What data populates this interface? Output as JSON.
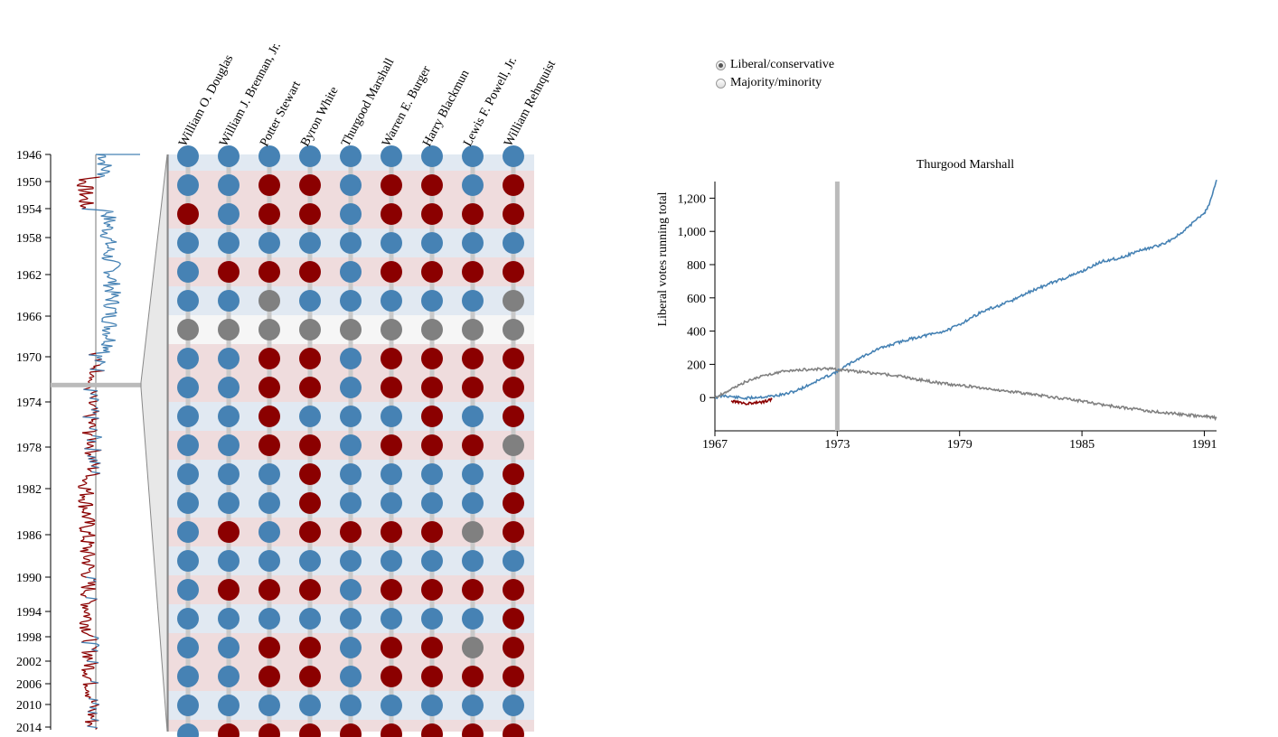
{
  "colors": {
    "liberal": "#4682b4",
    "conservative": "#8b0000",
    "none": "#808080",
    "row_liberal": "#e1e9f2",
    "row_conservative": "#efdcdd",
    "row_none": "#f6f6f6",
    "stem": "#c9c9c9",
    "brush": "#bbbbbb"
  },
  "mode": {
    "options": [
      "Liberal/conservative",
      "Majority/minority"
    ],
    "selected": 0
  },
  "timeline": {
    "years": [
      "1946",
      "1950",
      "1954",
      "1958",
      "1962",
      "1966",
      "1970",
      "1974",
      "1978",
      "1982",
      "1986",
      "1990",
      "1994",
      "1998",
      "2002",
      "2006",
      "2010",
      "2014"
    ],
    "year_values": [
      1946,
      1950,
      1954,
      1958,
      1962,
      1966,
      1970,
      1974,
      1978,
      1982,
      1986,
      1990,
      1994,
      1998,
      2002,
      2006,
      2010,
      2014
    ],
    "selected_year": 1972.5
  },
  "justices": [
    "William O. Douglas",
    "William J. Brennan, Jr.",
    "Potter Stewart",
    "Byron White",
    "Thurgood Marshall",
    "Warren E. Burger",
    "Harry Blackmun",
    "Lewis F. Powell, Jr.",
    "William Rehnquist"
  ],
  "votes": [
    "LLLLLLLLL",
    "LLCCLCCLC",
    "CLCCLCCCC",
    "LLLLLLLLL",
    "LCCCLCCCC",
    "LLNLLLLLN",
    "NNNNNNNNN",
    "LLCCLCCCC",
    "LLCCLCCCC",
    "LLCLLLCLC",
    "LLCCLCCCN",
    "LLLCLLLLC",
    "LLLCLLLLC",
    "LCLCCCCNC",
    "LLLLLLLLL",
    "LCCCLCCCC",
    "LLLLLLLLC",
    "LLCCLCCNC",
    "LLCCLCCCC",
    "LLLLLLLLL",
    "LCCCCCCCC"
  ],
  "chart_data": {
    "type": "line",
    "title": "Thurgood Marshall",
    "ylabel": "Liberal votes running total",
    "xlabel": "",
    "x_ticks": [
      "1967",
      "1973",
      "1979",
      "1985",
      "1991"
    ],
    "y_ticks": [
      "0",
      "200",
      "400",
      "600",
      "800",
      "1,000",
      "1,200"
    ],
    "xlim": [
      1967,
      1991.6
    ],
    "ylim": [
      -200,
      1300
    ],
    "selected_year": 1973,
    "series": [
      {
        "color": "#4682b4",
        "x": [
          1967,
          1967.5,
          1968,
          1968.5,
          1969,
          1969.5,
          1970,
          1970.5,
          1971,
          1971.5,
          1972,
          1972.5,
          1973,
          1973.5,
          1974,
          1974.5,
          1975,
          1975.5,
          1976,
          1976.5,
          1977,
          1977.5,
          1978,
          1978.5,
          1979,
          1979.5,
          1980,
          1980.5,
          1981,
          1981.5,
          1982,
          1982.5,
          1983,
          1983.5,
          1984,
          1984.5,
          1985,
          1985.5,
          1986,
          1986.5,
          1987,
          1987.5,
          1988,
          1988.5,
          1989,
          1989.5,
          1990,
          1990.5,
          1991,
          1991.2,
          1991.6
        ],
        "y": [
          0,
          12,
          2,
          -5,
          2,
          5,
          12,
          22,
          42,
          70,
          100,
          128,
          158,
          195,
          232,
          262,
          292,
          312,
          332,
          350,
          365,
          378,
          392,
          410,
          440,
          476,
          510,
          535,
          555,
          580,
          610,
          640,
          665,
          690,
          712,
          735,
          760,
          790,
          820,
          832,
          845,
          870,
          892,
          905,
          925,
          960,
          1000,
          1060,
          1110,
          1150,
          1310
        ]
      },
      {
        "color": "#808080",
        "x": [
          1967,
          1967.5,
          1968,
          1968.5,
          1969,
          1969.5,
          1970,
          1970.5,
          1971,
          1971.5,
          1972,
          1972.5,
          1973,
          1973.5,
          1974,
          1974.5,
          1975,
          1975.5,
          1976,
          1976.5,
          1977,
          1977.5,
          1978,
          1978.5,
          1979,
          1979.5,
          1980,
          1980.5,
          1981,
          1981.5,
          1982,
          1982.5,
          1983,
          1983.5,
          1984,
          1984.5,
          1985,
          1985.5,
          1986,
          1986.5,
          1987,
          1987.5,
          1988,
          1988.5,
          1989,
          1989.5,
          1990,
          1990.5,
          1991,
          1991.3,
          1991.6
        ],
        "y": [
          0,
          32,
          62,
          95,
          118,
          135,
          150,
          160,
          165,
          168,
          172,
          175,
          168,
          162,
          156,
          150,
          144,
          138,
          130,
          120,
          108,
          98,
          88,
          80,
          74,
          68,
          60,
          52,
          44,
          36,
          28,
          20,
          12,
          4,
          -4,
          -12,
          -22,
          -32,
          -42,
          -52,
          -60,
          -68,
          -76,
          -84,
          -90,
          -96,
          -102,
          -108,
          -114,
          -116,
          -124
        ]
      }
    ],
    "conservative_segment": {
      "color": "#8b0000",
      "x": [
        1967.8,
        1968.2,
        1968.6,
        1969,
        1969.4,
        1969.8
      ],
      "y": [
        -20,
        -28,
        -36,
        -32,
        -24,
        -12
      ]
    }
  }
}
